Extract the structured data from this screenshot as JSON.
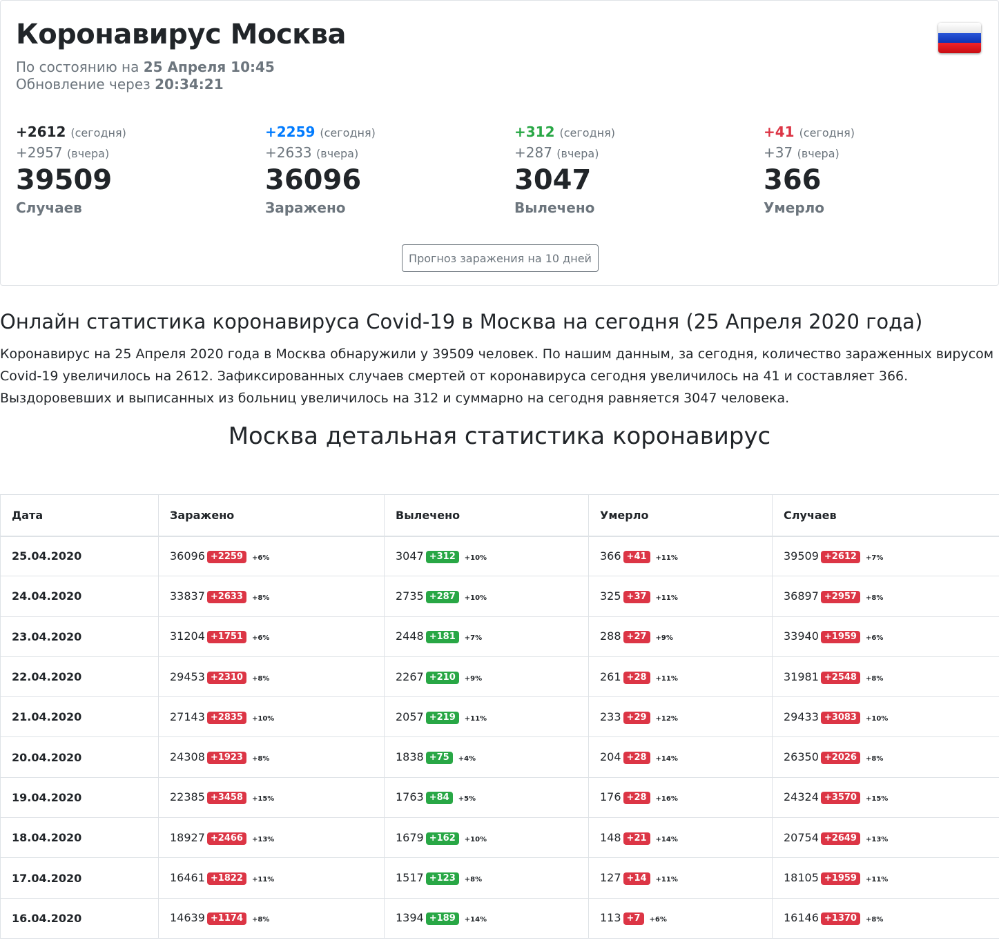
{
  "header": {
    "title": "Коронавирус Москва",
    "status_prefix": "По состоянию на",
    "status_date": "25 Апреля 10:45",
    "update_prefix": "Обновление через",
    "update_time": "20:34:21"
  },
  "colors": {
    "cases": "#212529",
    "infected": "#007bff",
    "recovered": "#28a745",
    "died": "#dc3545",
    "muted": "#6c757d"
  },
  "stats": [
    {
      "today": "+2612",
      "today_suffix": "(сегодня)",
      "yesterday": "+2957",
      "yesterday_suffix": "(вчера)",
      "total": "39509",
      "label": "Случаев"
    },
    {
      "today": "+2259",
      "today_suffix": "(сегодня)",
      "yesterday": "+2633",
      "yesterday_suffix": "(вчера)",
      "total": "36096",
      "label": "Заражено"
    },
    {
      "today": "+312",
      "today_suffix": "(сегодня)",
      "yesterday": "+287",
      "yesterday_suffix": "(вчера)",
      "total": "3047",
      "label": "Вылечено"
    },
    {
      "today": "+41",
      "today_suffix": "(сегодня)",
      "yesterday": "+37",
      "yesterday_suffix": "(вчера)",
      "total": "366",
      "label": "Умерло"
    }
  ],
  "forecast_button": "Прогноз заражения на 10 дней",
  "online": {
    "title": "Онлайн статистика коронавируса Covid-19 в Москва на сегодня (25 Апреля 2020 года)",
    "text": "Коронавирус на 25 Апреля 2020 года в Москва обнаружили у 39509 человек. По нашим данным, за сегодня, количество зараженных вирусом Covid-19 увеличилось на 2612. Зафиксированных случаев смертей от коронавируса сегодня увеличилось на 41 и составляет 366. Выздоровевших и выписанных из больниц увеличилось на 312 и суммарно на сегодня равняется 3047 человека."
  },
  "detail_title": "Москва детальная статистика коронавирус",
  "table": {
    "headers": [
      "Дата",
      "Заражено",
      "Вылечено",
      "Умерло",
      "Случаев"
    ],
    "rows": [
      {
        "date": "25.04.2020",
        "infected": {
          "value": "36096",
          "delta": "+2259",
          "pct": "+6%"
        },
        "recovered": {
          "value": "3047",
          "delta": "+312",
          "pct": "+10%"
        },
        "died": {
          "value": "366",
          "delta": "+41",
          "pct": "+11%"
        },
        "cases": {
          "value": "39509",
          "delta": "+2612",
          "pct": "+7%"
        }
      },
      {
        "date": "24.04.2020",
        "infected": {
          "value": "33837",
          "delta": "+2633",
          "pct": "+8%"
        },
        "recovered": {
          "value": "2735",
          "delta": "+287",
          "pct": "+10%"
        },
        "died": {
          "value": "325",
          "delta": "+37",
          "pct": "+11%"
        },
        "cases": {
          "value": "36897",
          "delta": "+2957",
          "pct": "+8%"
        }
      },
      {
        "date": "23.04.2020",
        "infected": {
          "value": "31204",
          "delta": "+1751",
          "pct": "+6%"
        },
        "recovered": {
          "value": "2448",
          "delta": "+181",
          "pct": "+7%"
        },
        "died": {
          "value": "288",
          "delta": "+27",
          "pct": "+9%"
        },
        "cases": {
          "value": "33940",
          "delta": "+1959",
          "pct": "+6%"
        }
      },
      {
        "date": "22.04.2020",
        "infected": {
          "value": "29453",
          "delta": "+2310",
          "pct": "+8%"
        },
        "recovered": {
          "value": "2267",
          "delta": "+210",
          "pct": "+9%"
        },
        "died": {
          "value": "261",
          "delta": "+28",
          "pct": "+11%"
        },
        "cases": {
          "value": "31981",
          "delta": "+2548",
          "pct": "+8%"
        }
      },
      {
        "date": "21.04.2020",
        "infected": {
          "value": "27143",
          "delta": "+2835",
          "pct": "+10%"
        },
        "recovered": {
          "value": "2057",
          "delta": "+219",
          "pct": "+11%"
        },
        "died": {
          "value": "233",
          "delta": "+29",
          "pct": "+12%"
        },
        "cases": {
          "value": "29433",
          "delta": "+3083",
          "pct": "+10%"
        }
      },
      {
        "date": "20.04.2020",
        "infected": {
          "value": "24308",
          "delta": "+1923",
          "pct": "+8%"
        },
        "recovered": {
          "value": "1838",
          "delta": "+75",
          "pct": "+4%"
        },
        "died": {
          "value": "204",
          "delta": "+28",
          "pct": "+14%"
        },
        "cases": {
          "value": "26350",
          "delta": "+2026",
          "pct": "+8%"
        }
      },
      {
        "date": "19.04.2020",
        "infected": {
          "value": "22385",
          "delta": "+3458",
          "pct": "+15%"
        },
        "recovered": {
          "value": "1763",
          "delta": "+84",
          "pct": "+5%"
        },
        "died": {
          "value": "176",
          "delta": "+28",
          "pct": "+16%"
        },
        "cases": {
          "value": "24324",
          "delta": "+3570",
          "pct": "+15%"
        }
      },
      {
        "date": "18.04.2020",
        "infected": {
          "value": "18927",
          "delta": "+2466",
          "pct": "+13%"
        },
        "recovered": {
          "value": "1679",
          "delta": "+162",
          "pct": "+10%"
        },
        "died": {
          "value": "148",
          "delta": "+21",
          "pct": "+14%"
        },
        "cases": {
          "value": "20754",
          "delta": "+2649",
          "pct": "+13%"
        }
      },
      {
        "date": "17.04.2020",
        "infected": {
          "value": "16461",
          "delta": "+1822",
          "pct": "+11%"
        },
        "recovered": {
          "value": "1517",
          "delta": "+123",
          "pct": "+8%"
        },
        "died": {
          "value": "127",
          "delta": "+14",
          "pct": "+11%"
        },
        "cases": {
          "value": "18105",
          "delta": "+1959",
          "pct": "+11%"
        }
      },
      {
        "date": "16.04.2020",
        "infected": {
          "value": "14639",
          "delta": "+1174",
          "pct": "+8%"
        },
        "recovered": {
          "value": "1394",
          "delta": "+189",
          "pct": "+14%"
        },
        "died": {
          "value": "113",
          "delta": "+7",
          "pct": "+6%"
        },
        "cases": {
          "value": "16146",
          "delta": "+1370",
          "pct": "+8%"
        }
      }
    ]
  }
}
